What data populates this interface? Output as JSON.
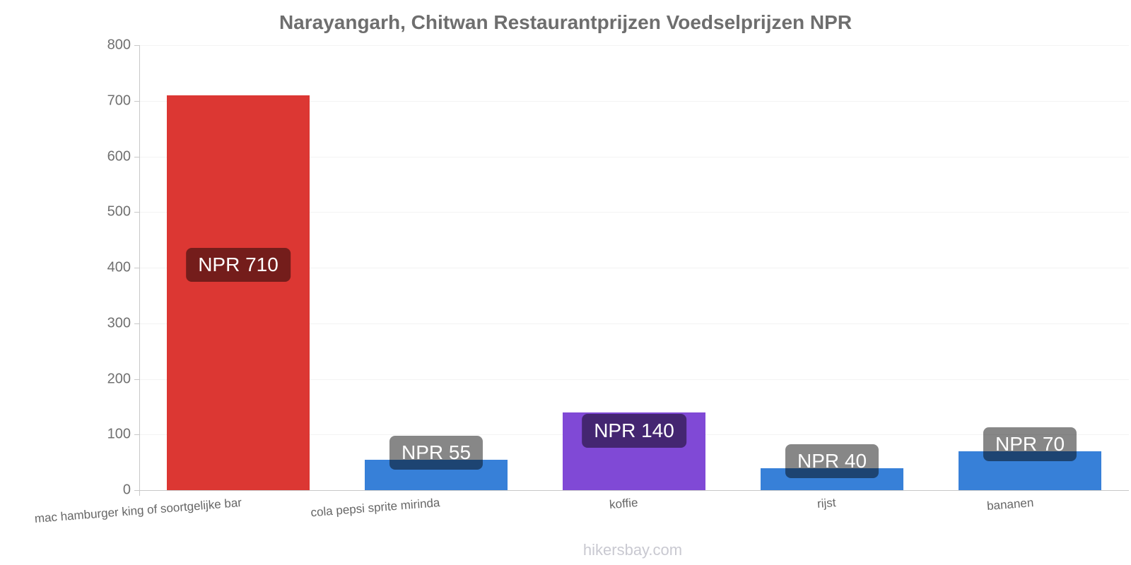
{
  "title": "Narayangarh, Chitwan Restaurantprijzen Voedselprijzen NPR",
  "footer": "hikersbay.com",
  "chart_data": {
    "type": "bar",
    "title": "Narayangarh, Chitwan Restaurantprijzen Voedselprijzen NPR",
    "currency": "NPR",
    "categories": [
      "mac hamburger king of soortgelijke bar",
      "cola pepsi sprite mirinda",
      "koffie",
      "rijst",
      "bananen"
    ],
    "values": [
      710,
      55,
      140,
      40,
      70
    ],
    "value_labels": [
      "NPR 710",
      "NPR 55",
      "NPR 140",
      "NPR 40",
      "NPR 70"
    ],
    "bar_colors": [
      "#dc3733",
      "#3780d8",
      "#8049d6",
      "#3780d8",
      "#3780d8"
    ],
    "value_label_bg": "rgba(0,0,0,0.47)",
    "value_label_text_color": "#ffffff",
    "ylim": [
      0,
      800
    ],
    "yticks": [
      0,
      100,
      200,
      300,
      400,
      500,
      600,
      700,
      800
    ],
    "grid": true,
    "legend": false,
    "axis_color": "#c8c8c8",
    "grid_color": "#f3f3f3",
    "tick_label_color": "#707070",
    "category_label_color": "#666666",
    "xlabel": "",
    "ylabel": ""
  }
}
